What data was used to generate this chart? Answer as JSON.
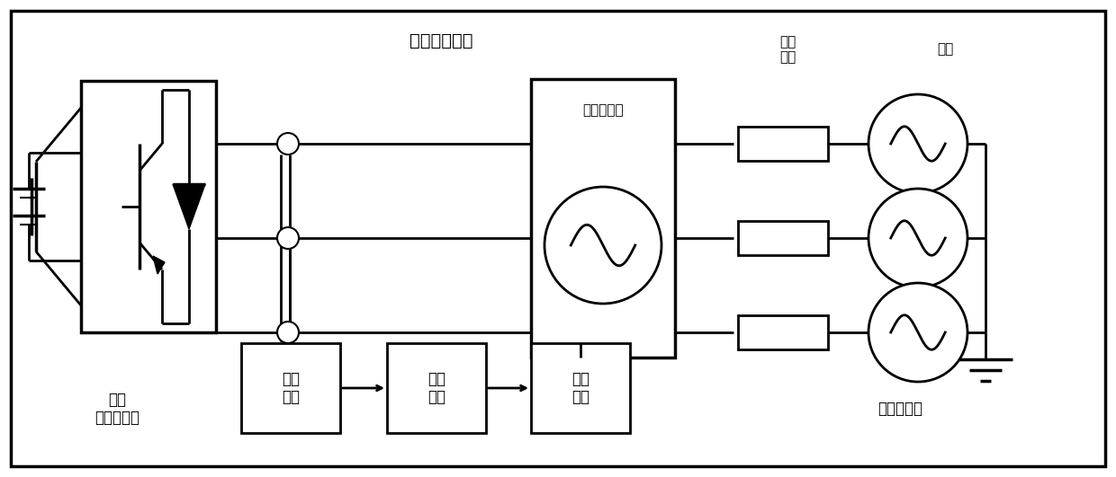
{
  "fig_width": 12.4,
  "fig_height": 5.31,
  "bg_color": "#ffffff",
  "line_color": "#000000",
  "title_impedance": "阻抗测量装置",
  "label_converter": "待测\n三相变流器",
  "label_grid_section": "非理想电网",
  "label_impedance": "电网\n阻抗",
  "label_grid": "电网",
  "label_disturbance": "受控扰动源",
  "label_data_collect": "数据\n采集",
  "label_data_process": "数据\n处理",
  "label_data_analyze": "数据\n分析"
}
